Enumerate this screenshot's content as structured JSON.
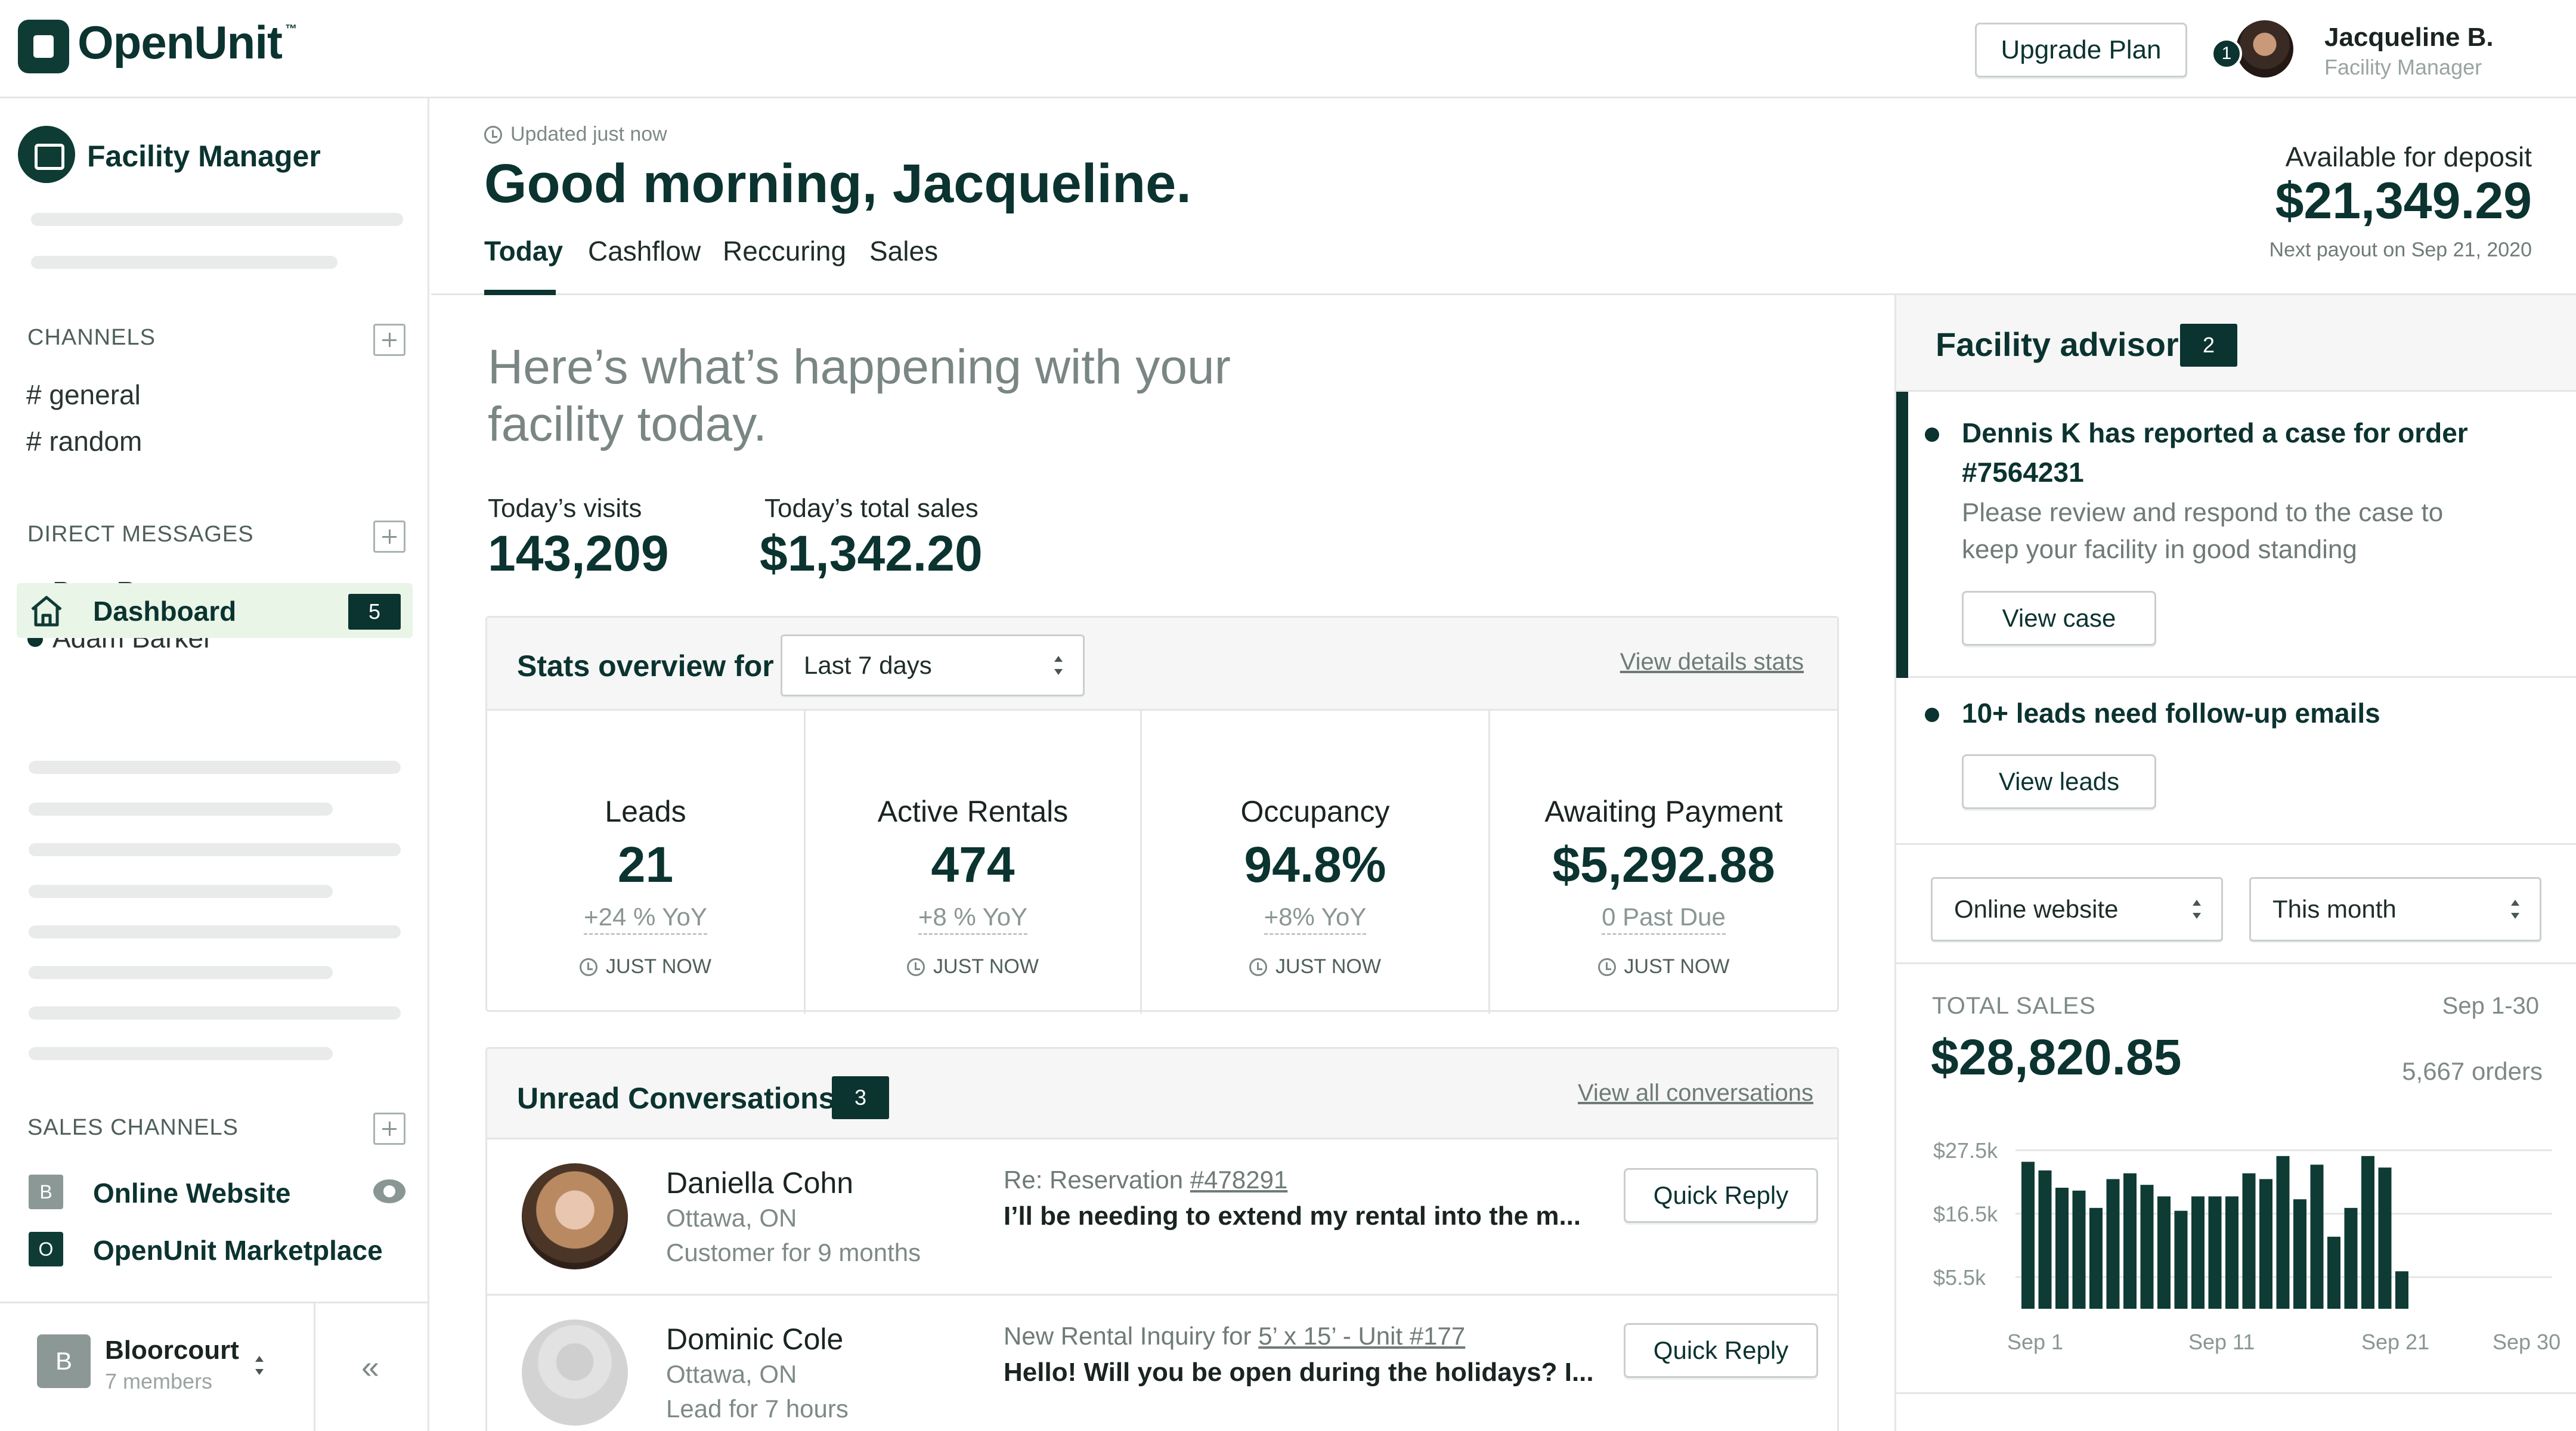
{
  "brand": {
    "name": "OpenUnit",
    "tm": "™"
  },
  "topbar": {
    "upgrade_label": "Upgrade Plan",
    "notification_count": "1",
    "user_name": "Jacqueline B.",
    "user_role": "Facility Manager"
  },
  "sidebar": {
    "workspace_label": "Facility Manager",
    "channels_header": "CHANNELS",
    "channels": [
      "# general",
      "# random"
    ],
    "dm_header": "DIRECT MESSAGES",
    "dms": [
      "Pam Rogers",
      "Adam Barker"
    ],
    "dashboard_label": "Dashboard",
    "dashboard_count": "5",
    "sales_header": "SALES CHANNELS",
    "sales_channels": [
      {
        "letter": "B",
        "name": "Online Website"
      },
      {
        "letter": "O",
        "name": "OpenUnit Marketplace"
      }
    ],
    "org": {
      "letter": "B",
      "name": "Bloorcourt",
      "members": "7 members"
    },
    "collapse_glyph": "«"
  },
  "header": {
    "updated": "Updated just now",
    "greeting": "Good morning, Jacqueline.",
    "tabs": [
      "Today",
      "Cashflow",
      "Reccuring",
      "Sales"
    ],
    "deposit_label": "Available for deposit",
    "deposit_amount": "$21,349.29",
    "payout_note": "Next payout on Sep 21, 2020"
  },
  "main": {
    "happening": "Here’s what’s happening with your facility today.",
    "visits_label": "Today’s visits",
    "visits_value": "143,209",
    "sales_label": "Today’s total sales",
    "sales_value": "$1,342.20",
    "stats": {
      "title": "Stats overview for",
      "range": "Last 7 days",
      "link": "View details stats",
      "cells": [
        {
          "title": "Leads",
          "value": "21",
          "sub": "+24 % YoY",
          "time": "JUST NOW"
        },
        {
          "title": "Active Rentals",
          "value": "474",
          "sub": "+8 % YoY",
          "time": "JUST NOW"
        },
        {
          "title": "Occupancy",
          "value": "94.8%",
          "sub": "+8% YoY",
          "time": "JUST NOW"
        },
        {
          "title": "Awaiting Payment",
          "value": "$5,292.88",
          "sub": "0 Past Due",
          "time": "JUST NOW"
        }
      ]
    },
    "conversations": {
      "title": "Unread Conversations",
      "count": "3",
      "link": "View all conversations",
      "rows": [
        {
          "name": "Daniella Cohn",
          "location": "Ottawa, ON",
          "meta": "Customer for 9 months",
          "subject_prefix": "Re: Reservation ",
          "subject_link": "#478291",
          "message": "I’ll be needing to extend my rental into the m...",
          "reply": "Quick Reply"
        },
        {
          "name": "Dominic Cole",
          "location": "Ottawa, ON",
          "meta": "Lead for 7 hours",
          "subject_prefix": "New Rental Inquiry for ",
          "subject_link": "5’ x 15’ - Unit #177",
          "message": "Hello! Will you be open during the holidays? I...",
          "reply": "Quick Reply"
        }
      ]
    }
  },
  "advisor": {
    "title": "Facility advisor",
    "count": "2",
    "items": [
      {
        "headline": "Dennis K has reported a case for order #7564231",
        "body": "Please review and respond to the case to keep your facility in good standing",
        "action": "View case"
      },
      {
        "headline": "10+ leads need follow-up emails",
        "action": "View leads"
      }
    ],
    "filter_channel": "Online website",
    "filter_period": "This month"
  },
  "sales_summary": {
    "label": "TOTAL SALES",
    "range": "Sep 1-30",
    "value": "$28,820.85",
    "orders": "5,667 orders"
  },
  "chart_data": {
    "type": "bar",
    "title": "",
    "xlabel": "",
    "ylabel": "",
    "ylim": [
      0,
      30000
    ],
    "yticks": [
      "$27.5k",
      "$16.5k",
      "$5.5k"
    ],
    "ytick_values": [
      27500,
      16500,
      5500
    ],
    "xticks": [
      "Sep 1",
      "Sep 11",
      "Sep 21",
      "Sep 30"
    ],
    "categories": [
      "Sep 1",
      "Sep 2",
      "Sep 3",
      "Sep 4",
      "Sep 5",
      "Sep 6",
      "Sep 7",
      "Sep 8",
      "Sep 9",
      "Sep 10",
      "Sep 11",
      "Sep 12",
      "Sep 13",
      "Sep 14",
      "Sep 15",
      "Sep 16",
      "Sep 17",
      "Sep 18",
      "Sep 19",
      "Sep 20",
      "Sep 21",
      "Sep 22"
    ],
    "values": [
      25500,
      24000,
      21000,
      20500,
      17500,
      22500,
      23500,
      21500,
      19500,
      17000,
      19500,
      19500,
      19500,
      23500,
      22500,
      26500,
      19000,
      25000,
      12500,
      17500,
      26500,
      24500
    ],
    "tail": [
      6500
    ],
    "color": "#0f3b35",
    "grid": true
  }
}
